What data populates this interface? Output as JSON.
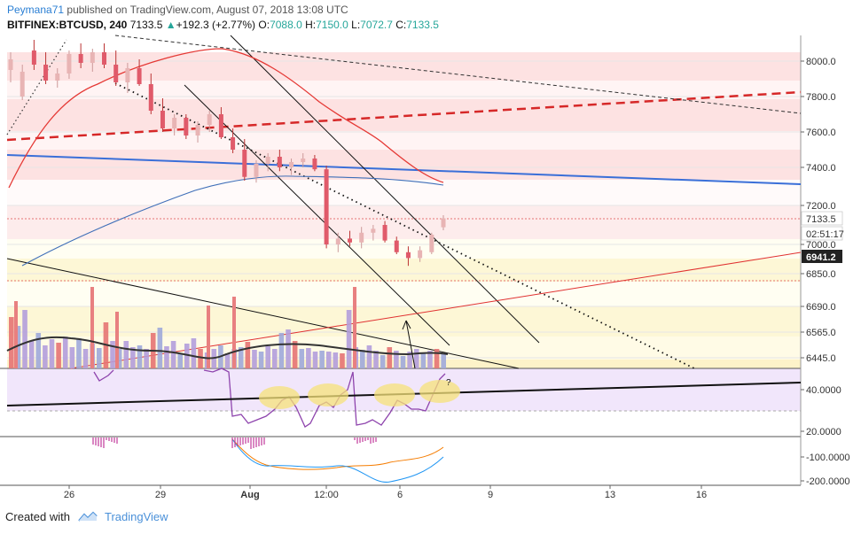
{
  "header": {
    "author": "Peymana71",
    "published_text": "published on TradingView.com, August 07, 2018 13:08 UTC",
    "symbol": "BITFINEX:BTCUSD, 240",
    "last": "7133.5",
    "change_arrow": "▲",
    "change": "+192.3 (+2.77%)",
    "open_label": "O:",
    "open": "7088.0",
    "high_label": "H:",
    "high": "7150.0",
    "low_label": "L:",
    "low": "7072.7",
    "close_label": "C:",
    "close": "7133.5"
  },
  "footer": {
    "created_with": "Created with",
    "brand": "TradingView"
  },
  "chart_data": {
    "type": "candlestick",
    "price_axis": {
      "ticks": [
        "8000.0",
        "7800.0",
        "7600.0",
        "7400.0",
        "7200.0",
        "7000.0",
        "6850.0",
        "6690.0",
        "6565.0",
        "6445.0"
      ],
      "labels": [
        {
          "text": "7133.5",
          "style": "price",
          "bg": "#ffffff",
          "color": "#333333"
        },
        {
          "text": "02:51:17",
          "style": "timer",
          "bg": "#ffffff",
          "color": "#333333"
        },
        {
          "text": "6941.2",
          "style": "dark",
          "bg": "#222222",
          "color": "#ffffff"
        }
      ]
    },
    "rsi_axis": {
      "ticks": [
        "40.0000",
        "20.0000"
      ]
    },
    "macd_axis": {
      "ticks": [
        "-100.0000",
        "-200.0000"
      ]
    },
    "time_axis": {
      "ticks": [
        "26",
        "29",
        "Aug",
        "12:00",
        "6",
        "9",
        "13",
        "16"
      ]
    },
    "annotations": [
      "?"
    ],
    "candles": [
      {
        "o": 7950,
        "h": 8050,
        "l": 7880,
        "c": 8010
      },
      {
        "o": 7800,
        "h": 7980,
        "l": 7780,
        "c": 7940
      },
      {
        "o": 8060,
        "h": 8120,
        "l": 7950,
        "c": 7980
      },
      {
        "o": 7980,
        "h": 8050,
        "l": 7870,
        "c": 7890
      },
      {
        "o": 7890,
        "h": 7960,
        "l": 7850,
        "c": 7930
      },
      {
        "o": 7930,
        "h": 8060,
        "l": 7900,
        "c": 8040
      },
      {
        "o": 8040,
        "h": 8100,
        "l": 7960,
        "c": 7990
      },
      {
        "o": 7990,
        "h": 8070,
        "l": 7940,
        "c": 8050
      },
      {
        "o": 8050,
        "h": 8100,
        "l": 7960,
        "c": 7980
      },
      {
        "o": 7980,
        "h": 8060,
        "l": 7860,
        "c": 7880
      },
      {
        "o": 7880,
        "h": 7990,
        "l": 7820,
        "c": 7960
      },
      {
        "o": 7960,
        "h": 8010,
        "l": 7860,
        "c": 7870
      },
      {
        "o": 7870,
        "h": 7930,
        "l": 7700,
        "c": 7720
      },
      {
        "o": 7720,
        "h": 7790,
        "l": 7600,
        "c": 7620
      },
      {
        "o": 7620,
        "h": 7700,
        "l": 7580,
        "c": 7680
      },
      {
        "o": 7680,
        "h": 7700,
        "l": 7560,
        "c": 7580
      },
      {
        "o": 7580,
        "h": 7660,
        "l": 7540,
        "c": 7640
      },
      {
        "o": 7640,
        "h": 7720,
        "l": 7600,
        "c": 7700
      },
      {
        "o": 7700,
        "h": 7740,
        "l": 7560,
        "c": 7570
      },
      {
        "o": 7570,
        "h": 7620,
        "l": 7480,
        "c": 7500
      },
      {
        "o": 7500,
        "h": 7560,
        "l": 7330,
        "c": 7350
      },
      {
        "o": 7350,
        "h": 7440,
        "l": 7320,
        "c": 7420
      },
      {
        "o": 7420,
        "h": 7480,
        "l": 7380,
        "c": 7460
      },
      {
        "o": 7460,
        "h": 7500,
        "l": 7380,
        "c": 7400
      },
      {
        "o": 7400,
        "h": 7450,
        "l": 7360,
        "c": 7430
      },
      {
        "o": 7430,
        "h": 7480,
        "l": 7400,
        "c": 7450
      },
      {
        "o": 7450,
        "h": 7470,
        "l": 7380,
        "c": 7390
      },
      {
        "o": 7390,
        "h": 7410,
        "l": 6980,
        "c": 7000
      },
      {
        "o": 7000,
        "h": 7060,
        "l": 6960,
        "c": 7030
      },
      {
        "o": 7030,
        "h": 7070,
        "l": 6990,
        "c": 7010
      },
      {
        "o": 7010,
        "h": 7090,
        "l": 6980,
        "c": 7060
      },
      {
        "o": 7060,
        "h": 7100,
        "l": 7020,
        "c": 7080
      },
      {
        "o": 7100,
        "h": 7120,
        "l": 7010,
        "c": 7020
      },
      {
        "o": 7020,
        "h": 7040,
        "l": 6950,
        "c": 6960
      },
      {
        "o": 6960,
        "h": 6990,
        "l": 6890,
        "c": 6930
      },
      {
        "o": 6930,
        "h": 6990,
        "l": 6910,
        "c": 6970
      },
      {
        "o": 6960,
        "h": 7060,
        "l": 6950,
        "c": 7050
      },
      {
        "o": 7088,
        "h": 7150,
        "l": 7073,
        "c": 7134
      }
    ]
  }
}
